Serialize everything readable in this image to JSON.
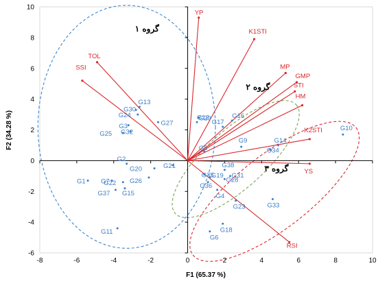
{
  "chart_data": {
    "type": "scatter",
    "subtype": "biplot",
    "xlabel": "F1 (65.37 %)",
    "ylabel": "F2 (34.28 %)",
    "xlim": [
      -8,
      10
    ],
    "ylim": [
      -6,
      10
    ],
    "xticks": [
      -8,
      -6,
      -4,
      -2,
      0,
      2,
      4,
      6,
      8,
      10
    ],
    "yticks": [
      -6,
      -4,
      -2,
      0,
      2,
      4,
      6,
      8,
      10
    ],
    "grid": false,
    "colors": {
      "vectors": "#d9262b",
      "points": "#3a7dc9",
      "group1": "#3a85d0",
      "group2": "#7aa356",
      "group3": "#d9262b"
    },
    "vectors": [
      {
        "name": "YP",
        "x": 0.6,
        "y": 9.3
      },
      {
        "name": "K1STI",
        "x": 3.6,
        "y": 7.9
      },
      {
        "name": "TOL",
        "x": -4.9,
        "y": 6.4
      },
      {
        "name": "SSI",
        "x": -5.7,
        "y": 5.2
      },
      {
        "name": "MP",
        "x": 5.3,
        "y": 5.7
      },
      {
        "name": "GMP",
        "x": 5.9,
        "y": 5.1
      },
      {
        "name": "STI",
        "x": 5.8,
        "y": 4.5
      },
      {
        "name": "HM",
        "x": 6.2,
        "y": 3.6
      },
      {
        "name": "K2STI",
        "x": 6.6,
        "y": 1.4
      },
      {
        "name": "YS",
        "x": 6.6,
        "y": -0.2
      },
      {
        "name": "RSI",
        "x": 5.5,
        "y": -5.3
      }
    ],
    "points": [
      {
        "name": "G1",
        "x": -5.4,
        "y": -1.3
      },
      {
        "name": "G2",
        "x": -3.3,
        "y": -0.2
      },
      {
        "name": "G3",
        "x": -3.2,
        "y": 2.3
      },
      {
        "name": "G4",
        "x": 1.6,
        "y": -1.9
      },
      {
        "name": "G5",
        "x": 0.9,
        "y": 0.6
      },
      {
        "name": "G6",
        "x": 1.2,
        "y": -4.6
      },
      {
        "name": "G7",
        "x": -4.1,
        "y": -1.3
      },
      {
        "name": "G9",
        "x": 2.9,
        "y": 0.9
      },
      {
        "name": "G10",
        "x": 8.4,
        "y": 1.7
      },
      {
        "name": "G11",
        "x": -3.8,
        "y": -4.4
      },
      {
        "name": "G12",
        "x": 0.5,
        "y": 2.5
      },
      {
        "name": "G13",
        "x": -2.6,
        "y": 3.5
      },
      {
        "name": "G14",
        "x": 4.9,
        "y": 1.0
      },
      {
        "name": "G15",
        "x": -3.4,
        "y": -1.8
      },
      {
        "name": "G16",
        "x": 2.4,
        "y": 2.6
      },
      {
        "name": "G17",
        "x": 1.9,
        "y": 2.2
      },
      {
        "name": "G18",
        "x": 1.9,
        "y": -4.1
      },
      {
        "name": "G19",
        "x": 1.2,
        "y": -1.1
      },
      {
        "name": "G20",
        "x": -1.8,
        "y": -0.5
      },
      {
        "name": "G21",
        "x": -0.8,
        "y": -0.3
      },
      {
        "name": "G22",
        "x": -3.5,
        "y": -1.4
      },
      {
        "name": "G23",
        "x": 2.6,
        "y": -2.6
      },
      {
        "name": "G24",
        "x": -2.7,
        "y": 3.0
      },
      {
        "name": "G25",
        "x": -3.5,
        "y": 1.8
      },
      {
        "name": "G26",
        "x": -2.1,
        "y": -1.1
      },
      {
        "name": "G27",
        "x": -1.6,
        "y": 2.5
      },
      {
        "name": "G28",
        "x": 2.0,
        "y": -1.2
      },
      {
        "name": "G29",
        "x": 0.6,
        "y": 2.8
      },
      {
        "name": "G30",
        "x": -2.8,
        "y": 3.3
      },
      {
        "name": "G31",
        "x": 2.3,
        "y": -1.0
      },
      {
        "name": "G32",
        "x": -3.1,
        "y": 1.9
      },
      {
        "name": "G33",
        "x": 4.6,
        "y": -2.5
      },
      {
        "name": "G34",
        "x": 4.5,
        "y": 0.7
      },
      {
        "name": "G35",
        "x": 0.9,
        "y": -0.9
      },
      {
        "name": "G36",
        "x": 1.1,
        "y": -1.4
      },
      {
        "name": "G37",
        "x": -3.9,
        "y": -1.9
      },
      {
        "name": "G38",
        "x": 2.0,
        "y": -0.6
      }
    ],
    "groups": [
      {
        "name": "گروه ۱"
      },
      {
        "name": "گروه ۲"
      },
      {
        "name": "گروه ۳"
      }
    ]
  }
}
